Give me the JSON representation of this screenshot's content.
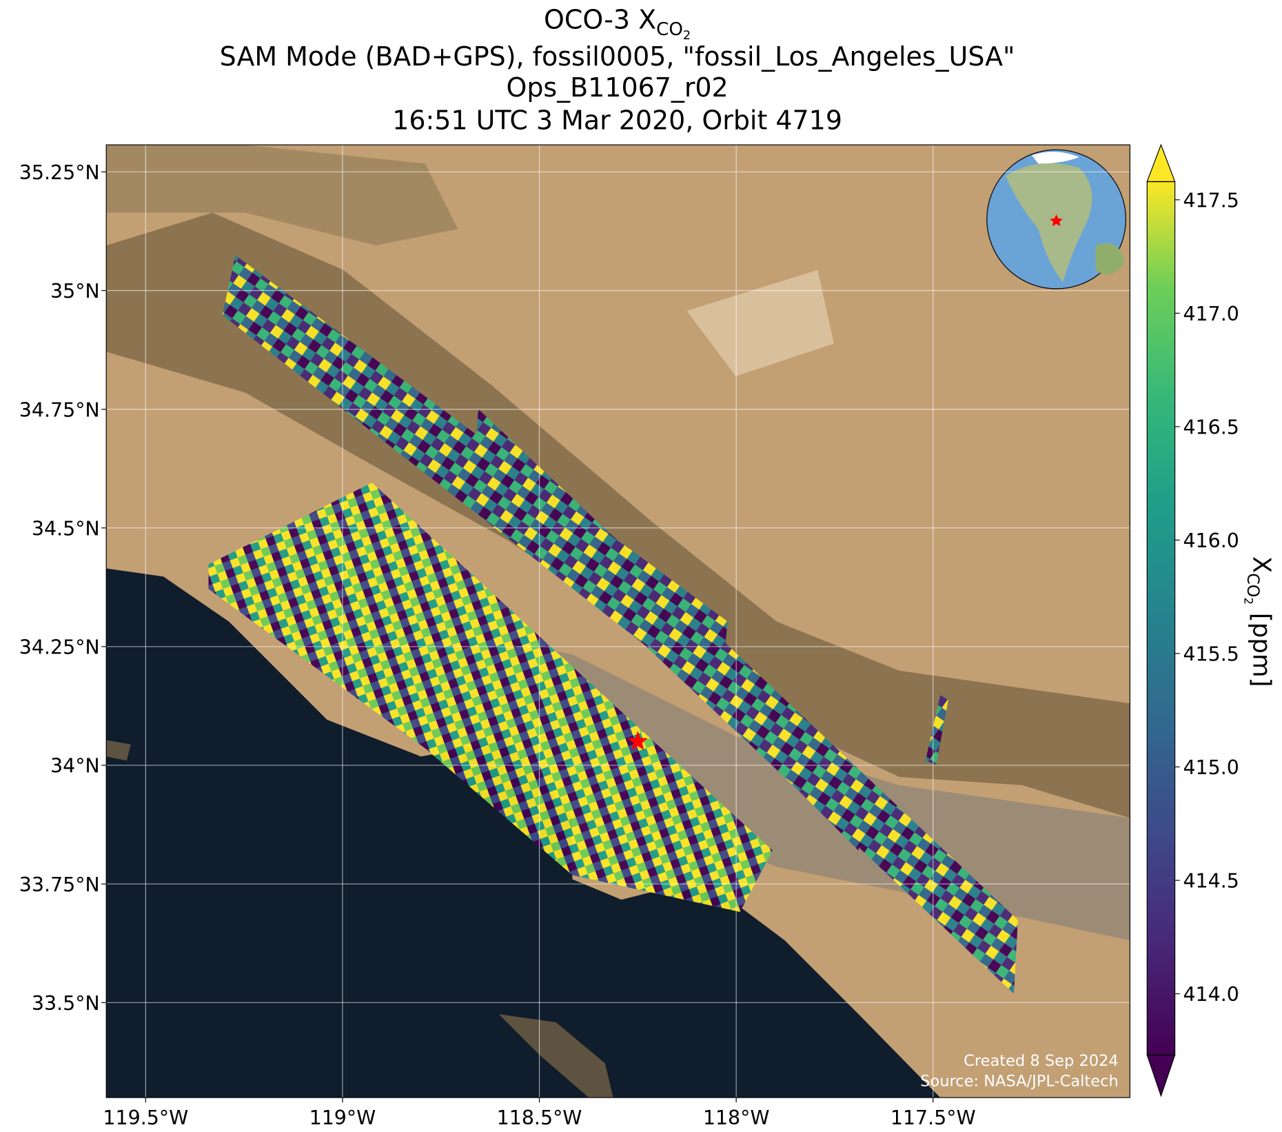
{
  "chart_data": {
    "type": "map",
    "title": {
      "line1_prefix": "OCO-3 X",
      "line1_sub": "CO",
      "line1_subsub": "2",
      "line2": "SAM Mode (BAD+GPS), fossil0005, \"fossil_Los_Angeles_USA\"",
      "line3": "Ops_B11067_r02",
      "line4": "16:51 UTC 3 Mar 2020, Orbit 4719"
    },
    "xlim": [
      -119.6,
      -117.0
    ],
    "ylim": [
      33.3,
      35.307
    ],
    "xticks": [
      {
        "value": -119.5,
        "label": "119.5°W"
      },
      {
        "value": -119,
        "label": "119°W"
      },
      {
        "value": -118.5,
        "label": "118.5°W"
      },
      {
        "value": -118,
        "label": "118°W"
      },
      {
        "value": -117.5,
        "label": "117.5°W"
      }
    ],
    "yticks": [
      {
        "value": 33.5,
        "label": "33.5°N"
      },
      {
        "value": 33.75,
        "label": "33.75°N"
      },
      {
        "value": 34,
        "label": "34°N"
      },
      {
        "value": 34.25,
        "label": "34.25°N"
      },
      {
        "value": 34.5,
        "label": "34.5°N"
      },
      {
        "value": 34.75,
        "label": "34.75°N"
      },
      {
        "value": 35,
        "label": "35°N"
      },
      {
        "value": 35.25,
        "label": "35.25°N"
      }
    ],
    "grid": true,
    "site_marker": {
      "lon": -118.25,
      "lat": 34.05,
      "color": "#ff0000"
    },
    "colorbar": {
      "clim": [
        413.73,
        417.58
      ],
      "ticks": [
        {
          "value": 414,
          "label": "414.0"
        },
        414.5,
        {
          "value": 415,
          "label": "415.0"
        },
        415.5,
        {
          "value": 416,
          "label": "416.0"
        },
        416.5,
        {
          "value": 417,
          "label": "417.0"
        },
        417.5
      ],
      "label_prefix": "X",
      "label_sub": "CO",
      "label_subsub": "2",
      "label_suffix": "[ppm]",
      "extend": "both"
    },
    "credits": {
      "created": "Created 8 Sep 2024",
      "source": "Source: NASA/JPL-Caltech"
    }
  }
}
